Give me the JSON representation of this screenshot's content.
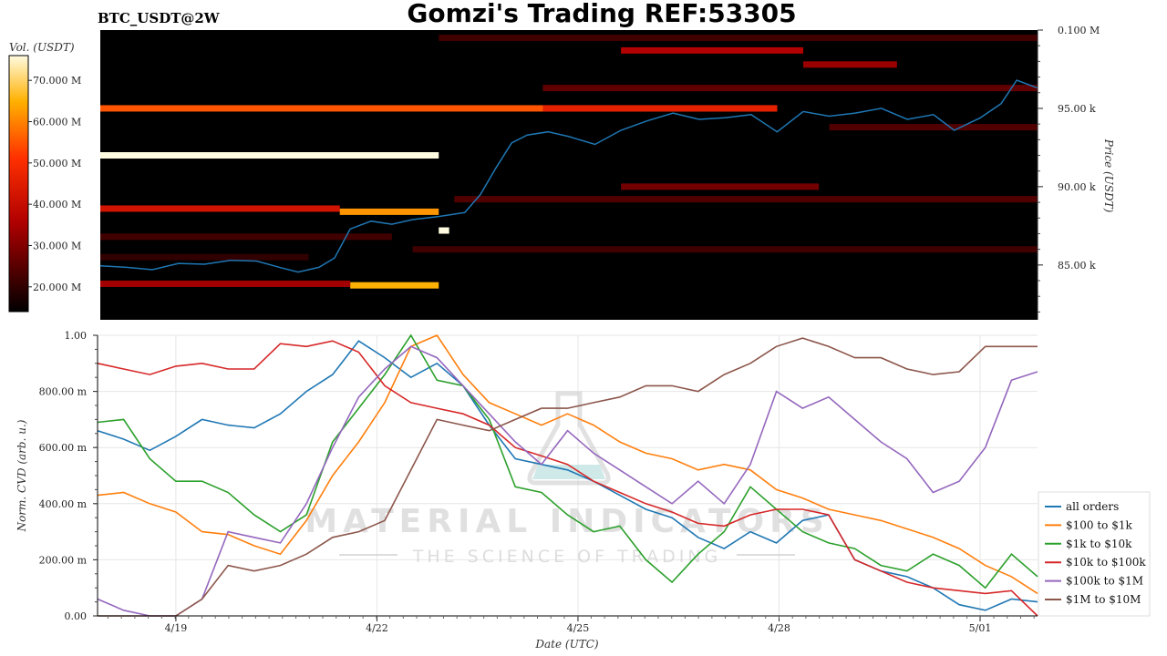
{
  "header": {
    "title": "Gomzi's Trading REF:53305",
    "symbol": "BTC_USDT@2W"
  },
  "watermark": {
    "brand": "MATERIAL INDICATORS",
    "tagline": "THE SCIENCE OF TRADING"
  },
  "colors": {
    "price_line": "#1f77b4",
    "heatmap_bg": "#000000"
  },
  "chart_data": [
    {
      "type": "heatmap",
      "name": "orderbook-heatmap",
      "ylabel": "Price (USDT)",
      "yticks": [
        "0.100 M",
        "95.00 k",
        "90.00 k",
        "85.00 k"
      ],
      "ylim": [
        81500,
        100000
      ],
      "colorbar": {
        "label": "Vol. (USDT)",
        "ticks": [
          "70.000 M",
          "60.000 M",
          "50.000 M",
          "40.000 M",
          "30.000 M",
          "20.000 M"
        ],
        "range": [
          14000000,
          76000000
        ]
      },
      "price_series": [
        {
          "d": 0.0,
          "p": 84950
        },
        {
          "d": 0.5,
          "p": 84850
        },
        {
          "d": 1.0,
          "p": 84700
        },
        {
          "d": 1.5,
          "p": 85100
        },
        {
          "d": 2.0,
          "p": 85050
        },
        {
          "d": 2.5,
          "p": 85300
        },
        {
          "d": 3.0,
          "p": 85250
        },
        {
          "d": 3.5,
          "p": 84800
        },
        {
          "d": 3.8,
          "p": 84550
        },
        {
          "d": 4.2,
          "p": 84850
        },
        {
          "d": 4.5,
          "p": 85450
        },
        {
          "d": 4.8,
          "p": 87300
        },
        {
          "d": 5.2,
          "p": 87800
        },
        {
          "d": 5.6,
          "p": 87600
        },
        {
          "d": 6.0,
          "p": 87900
        },
        {
          "d": 6.5,
          "p": 88100
        },
        {
          "d": 7.0,
          "p": 88350
        },
        {
          "d": 7.3,
          "p": 89500
        },
        {
          "d": 7.6,
          "p": 91200
        },
        {
          "d": 7.9,
          "p": 92800
        },
        {
          "d": 8.2,
          "p": 93300
        },
        {
          "d": 8.6,
          "p": 93500
        },
        {
          "d": 9.0,
          "p": 93200
        },
        {
          "d": 9.5,
          "p": 92700
        },
        {
          "d": 10.0,
          "p": 93600
        },
        {
          "d": 10.5,
          "p": 94200
        },
        {
          "d": 11.0,
          "p": 94700
        },
        {
          "d": 11.5,
          "p": 94300
        },
        {
          "d": 12.0,
          "p": 94400
        },
        {
          "d": 12.5,
          "p": 94600
        },
        {
          "d": 13.0,
          "p": 93500
        },
        {
          "d": 13.5,
          "p": 94800
        },
        {
          "d": 14.0,
          "p": 94500
        },
        {
          "d": 14.5,
          "p": 94700
        },
        {
          "d": 15.0,
          "p": 95000
        },
        {
          "d": 15.5,
          "p": 94300
        },
        {
          "d": 16.0,
          "p": 94600
        },
        {
          "d": 16.4,
          "p": 93600
        },
        {
          "d": 16.9,
          "p": 94400
        },
        {
          "d": 17.3,
          "p": 95300
        },
        {
          "d": 17.6,
          "p": 96800
        },
        {
          "d": 18.0,
          "p": 96300
        }
      ],
      "bands": [
        {
          "p": 95000,
          "d0": 0.0,
          "d1": 13.0,
          "v": 55000000
        },
        {
          "p": 95000,
          "d0": 8.5,
          "d1": 13.0,
          "v": 46000000
        },
        {
          "p": 92000,
          "d0": 0.0,
          "d1": 6.5,
          "v": 76000000
        },
        {
          "p": 88600,
          "d0": 0.0,
          "d1": 4.6,
          "v": 42000000
        },
        {
          "p": 88400,
          "d0": 4.6,
          "d1": 6.5,
          "v": 62000000
        },
        {
          "p": 87200,
          "d0": 6.5,
          "d1": 6.7,
          "v": 76000000
        },
        {
          "p": 83700,
          "d0": 4.8,
          "d1": 6.5,
          "v": 65000000
        },
        {
          "p": 83800,
          "d0": 0.0,
          "d1": 4.8,
          "v": 34000000
        },
        {
          "p": 98700,
          "d0": 10.0,
          "d1": 13.5,
          "v": 36000000
        },
        {
          "p": 97800,
          "d0": 13.5,
          "d1": 15.3,
          "v": 33000000
        },
        {
          "p": 96300,
          "d0": 8.5,
          "d1": 18.0,
          "v": 26000000
        },
        {
          "p": 90000,
          "d0": 10.0,
          "d1": 13.8,
          "v": 28000000
        },
        {
          "p": 89200,
          "d0": 6.8,
          "d1": 18.0,
          "v": 24000000
        },
        {
          "p": 86000,
          "d0": 6.0,
          "d1": 18.0,
          "v": 22000000
        },
        {
          "p": 99500,
          "d0": 6.5,
          "d1": 18.0,
          "v": 22000000
        },
        {
          "p": 86800,
          "d0": 0.0,
          "d1": 5.6,
          "v": 22000000
        },
        {
          "p": 85500,
          "d0": 0.0,
          "d1": 4.0,
          "v": 20000000
        },
        {
          "p": 93800,
          "d0": 14.0,
          "d1": 18.0,
          "v": 24000000
        }
      ]
    },
    {
      "type": "line",
      "name": "norm-cvd",
      "xlabel": "Date (UTC)",
      "ylabel": "Norm. CVD (arb. u.)",
      "ylim": [
        0,
        1
      ],
      "yticks": [
        "0.00",
        "200.00 m",
        "400.00 m",
        "600.00 m",
        "800.00 m",
        "1.00"
      ],
      "xticks": [
        "4/19",
        "4/22",
        "4/25",
        "4/28",
        "5/01"
      ],
      "legend_position": "right",
      "series": [
        {
          "name": "all orders",
          "color": "#1f77b4",
          "x": [
            0,
            0.5,
            1,
            1.5,
            2,
            2.5,
            3,
            3.5,
            4,
            4.5,
            5,
            5.5,
            6,
            6.5,
            7,
            7.5,
            8,
            8.5,
            9,
            9.5,
            10,
            10.5,
            11,
            11.5,
            12,
            12.5,
            13,
            13.5,
            14,
            14.5,
            15,
            15.5,
            16,
            16.5,
            17,
            17.5,
            18
          ],
          "y": [
            0.66,
            0.63,
            0.59,
            0.64,
            0.7,
            0.68,
            0.67,
            0.72,
            0.8,
            0.86,
            0.98,
            0.92,
            0.85,
            0.9,
            0.82,
            0.68,
            0.56,
            0.54,
            0.52,
            0.48,
            0.43,
            0.38,
            0.35,
            0.28,
            0.24,
            0.3,
            0.26,
            0.34,
            0.36,
            0.2,
            0.16,
            0.14,
            0.1,
            0.04,
            0.02,
            0.06,
            0.05
          ]
        },
        {
          "name": "$100 to $1k",
          "color": "#ff7f0e",
          "x": [
            0,
            0.5,
            1,
            1.5,
            2,
            2.5,
            3,
            3.5,
            4,
            4.5,
            5,
            5.5,
            6,
            6.5,
            7,
            7.5,
            8,
            8.5,
            9,
            9.5,
            10,
            10.5,
            11,
            11.5,
            12,
            12.5,
            13,
            13.5,
            14,
            14.5,
            15,
            15.5,
            16,
            16.5,
            17,
            17.5,
            18
          ],
          "y": [
            0.43,
            0.44,
            0.4,
            0.37,
            0.3,
            0.29,
            0.25,
            0.22,
            0.34,
            0.5,
            0.62,
            0.76,
            0.96,
            1.0,
            0.86,
            0.76,
            0.72,
            0.68,
            0.72,
            0.68,
            0.62,
            0.58,
            0.56,
            0.52,
            0.54,
            0.52,
            0.45,
            0.42,
            0.38,
            0.36,
            0.34,
            0.31,
            0.28,
            0.24,
            0.18,
            0.14,
            0.08
          ]
        },
        {
          "name": "$1k to $10k",
          "color": "#2ca02c",
          "x": [
            0,
            0.5,
            1,
            1.5,
            2,
            2.5,
            3,
            3.5,
            4,
            4.5,
            5,
            5.5,
            6,
            6.5,
            7,
            7.5,
            8,
            8.5,
            9,
            9.5,
            10,
            10.5,
            11,
            11.5,
            12,
            12.5,
            13,
            13.5,
            14,
            14.5,
            15,
            15.5,
            16,
            16.5,
            17,
            17.5,
            18
          ],
          "y": [
            0.69,
            0.7,
            0.56,
            0.48,
            0.48,
            0.44,
            0.36,
            0.3,
            0.36,
            0.62,
            0.74,
            0.86,
            1.0,
            0.84,
            0.82,
            0.7,
            0.46,
            0.44,
            0.36,
            0.3,
            0.32,
            0.2,
            0.12,
            0.22,
            0.3,
            0.46,
            0.38,
            0.3,
            0.26,
            0.24,
            0.18,
            0.16,
            0.22,
            0.18,
            0.1,
            0.22,
            0.14
          ]
        },
        {
          "name": "$10k to $100k",
          "color": "#d62728",
          "x": [
            0,
            0.5,
            1,
            1.5,
            2,
            2.5,
            3,
            3.5,
            4,
            4.5,
            5,
            5.5,
            6,
            6.5,
            7,
            7.5,
            8,
            8.5,
            9,
            9.5,
            10,
            10.5,
            11,
            11.5,
            12,
            12.5,
            13,
            13.5,
            14,
            14.5,
            15,
            15.5,
            16,
            16.5,
            17,
            17.5,
            18
          ],
          "y": [
            0.9,
            0.88,
            0.86,
            0.89,
            0.9,
            0.88,
            0.88,
            0.97,
            0.96,
            0.98,
            0.94,
            0.82,
            0.76,
            0.74,
            0.72,
            0.68,
            0.6,
            0.57,
            0.54,
            0.48,
            0.44,
            0.4,
            0.37,
            0.33,
            0.32,
            0.36,
            0.38,
            0.38,
            0.36,
            0.2,
            0.16,
            0.12,
            0.1,
            0.09,
            0.08,
            0.09,
            0.0
          ]
        },
        {
          "name": "$100k to $1M",
          "color": "#9467bd",
          "x": [
            0,
            0.5,
            1,
            1.5,
            2,
            2.5,
            3,
            3.5,
            4,
            4.5,
            5,
            5.5,
            6,
            6.5,
            7,
            7.5,
            8,
            8.5,
            9,
            9.5,
            10,
            10.5,
            11,
            11.5,
            12,
            12.5,
            13,
            13.5,
            14,
            14.5,
            15,
            15.5,
            16,
            16.5,
            17,
            17.5,
            18
          ],
          "y": [
            0.06,
            0.02,
            0.0,
            0.0,
            0.06,
            0.3,
            0.28,
            0.26,
            0.4,
            0.6,
            0.78,
            0.88,
            0.96,
            0.92,
            0.82,
            0.72,
            0.62,
            0.54,
            0.66,
            0.58,
            0.52,
            0.46,
            0.4,
            0.48,
            0.4,
            0.54,
            0.8,
            0.74,
            0.78,
            0.7,
            0.62,
            0.56,
            0.44,
            0.48,
            0.6,
            0.84,
            0.87
          ]
        },
        {
          "name": "$1M to $10M",
          "color": "#8c564b",
          "x": [
            0,
            0.5,
            1,
            1.5,
            2,
            2.5,
            3,
            3.5,
            4,
            4.5,
            5,
            5.5,
            6,
            6.5,
            7,
            7.5,
            8,
            8.5,
            9,
            9.5,
            10,
            10.5,
            11,
            11.5,
            12,
            12.5,
            13,
            13.5,
            14,
            14.5,
            15,
            15.5,
            16,
            16.5,
            17,
            17.5,
            18
          ],
          "y": [
            0.0,
            0.0,
            0.0,
            0.0,
            0.06,
            0.18,
            0.16,
            0.18,
            0.22,
            0.28,
            0.3,
            0.34,
            0.52,
            0.7,
            0.68,
            0.66,
            0.7,
            0.74,
            0.74,
            0.76,
            0.78,
            0.82,
            0.82,
            0.8,
            0.86,
            0.9,
            0.96,
            0.99,
            0.96,
            0.92,
            0.92,
            0.88,
            0.86,
            0.87,
            0.96,
            0.96,
            0.96
          ]
        }
      ]
    }
  ]
}
